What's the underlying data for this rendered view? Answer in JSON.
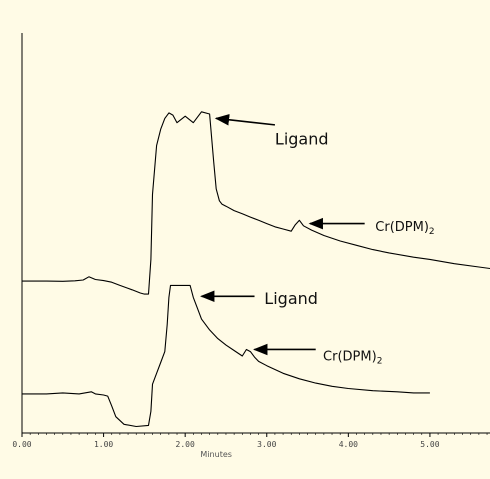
{
  "chart_data": {
    "type": "line",
    "xlabel": "Minutes",
    "xlim": [
      0,
      5.8
    ],
    "x_ticks": [
      "0.00",
      "1.00",
      "2.00",
      "3.00",
      "4.00",
      "5.00"
    ],
    "grid": false,
    "series": [
      {
        "id": "upper-trace",
        "x": [
          0.0,
          0.3,
          0.5,
          0.65,
          0.75,
          0.82,
          0.9,
          1.0,
          1.1,
          1.2,
          1.35,
          1.45,
          1.5,
          1.55,
          1.58,
          1.6,
          1.65,
          1.7,
          1.75,
          1.8,
          1.85,
          1.9,
          2.0,
          2.1,
          2.2,
          2.3,
          2.35,
          2.38,
          2.42,
          2.45,
          2.5,
          2.6,
          2.7,
          2.8,
          2.9,
          3.0,
          3.1,
          3.2,
          3.3,
          3.35,
          3.4,
          3.45,
          3.55,
          3.7,
          3.9,
          4.1,
          4.3,
          4.5,
          4.8,
          5.0,
          5.3,
          5.6,
          5.8
        ],
        "y": [
          3.0,
          3.0,
          2.98,
          3.03,
          3.1,
          3.4,
          3.15,
          3.05,
          2.9,
          2.6,
          2.2,
          1.9,
          1.8,
          1.8,
          5.0,
          11.0,
          15.5,
          17.0,
          18.0,
          18.5,
          18.3,
          17.6,
          18.2,
          17.6,
          18.6,
          18.4,
          14.0,
          11.5,
          10.4,
          10.1,
          9.9,
          9.5,
          9.2,
          8.9,
          8.6,
          8.3,
          8.0,
          7.8,
          7.6,
          8.2,
          8.6,
          8.1,
          7.7,
          7.2,
          6.7,
          6.3,
          5.9,
          5.6,
          5.2,
          5.0,
          4.6,
          4.3,
          4.1
        ]
      },
      {
        "id": "lower-trace",
        "x": [
          0.0,
          0.3,
          0.5,
          0.7,
          0.85,
          0.9,
          1.0,
          1.05,
          1.1,
          1.15,
          1.25,
          1.4,
          1.55,
          1.58,
          1.6,
          1.65,
          1.7,
          1.75,
          1.78,
          1.8,
          1.82,
          1.84,
          2.06,
          2.1,
          2.15,
          2.2,
          2.3,
          2.4,
          2.5,
          2.6,
          2.7,
          2.75,
          2.8,
          2.85,
          2.9,
          3.0,
          3.2,
          3.4,
          3.6,
          3.8,
          4.0,
          4.3,
          4.6,
          4.8,
          5.0
        ],
        "y": [
          -7.4,
          -7.4,
          -7.3,
          -7.4,
          -7.2,
          -7.4,
          -7.5,
          -7.6,
          -8.5,
          -9.5,
          -10.2,
          -10.4,
          -10.3,
          -9.0,
          -6.5,
          -5.5,
          -4.5,
          -3.5,
          -1.0,
          1.5,
          2.6,
          2.6,
          2.6,
          1.5,
          0.5,
          -0.5,
          -1.5,
          -2.3,
          -2.9,
          -3.4,
          -3.9,
          -3.3,
          -3.5,
          -4.0,
          -4.4,
          -4.8,
          -5.5,
          -6.0,
          -6.4,
          -6.7,
          -6.9,
          -7.1,
          -7.2,
          -7.3,
          -7.3
        ]
      }
    ],
    "annotations": [
      {
        "id": "ann-ligand-upper",
        "text": "Ligand",
        "sub": "",
        "arrow_to": [
          2.38,
          18.0
        ],
        "arrow_from": [
          3.1,
          17.4
        ],
        "text_at": [
          3.1,
          15.6
        ]
      },
      {
        "id": "ann-cr-upper",
        "text": "Cr(DPM)",
        "sub": "2",
        "arrow_to": [
          3.53,
          8.3
        ],
        "arrow_from": [
          4.2,
          8.3
        ],
        "text_at": [
          4.33,
          7.6
        ]
      },
      {
        "id": "ann-ligand-lower",
        "text": "Ligand",
        "sub": "",
        "arrow_to": [
          2.2,
          1.6
        ],
        "arrow_from": [
          2.85,
          1.6
        ],
        "text_at": [
          2.97,
          0.9
        ]
      },
      {
        "id": "ann-cr-lower",
        "text": "Cr(DPM)",
        "sub": "2",
        "arrow_to": [
          2.85,
          -3.3
        ],
        "arrow_from": [
          3.6,
          -3.3
        ],
        "text_at": [
          3.69,
          -4.3
        ]
      }
    ]
  }
}
